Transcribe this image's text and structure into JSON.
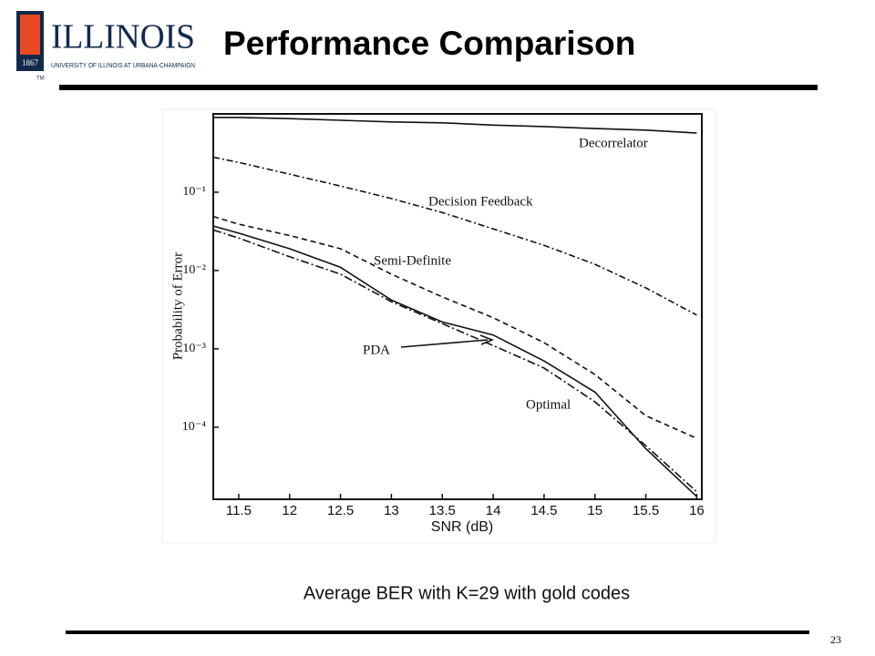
{
  "slide": {
    "title": "Performance Comparison",
    "caption": "Average BER with K=29 with gold codes",
    "page_number": "23",
    "logo": {
      "name": "ILLINOIS",
      "subtitle": "UNIVERSITY OF ILLINOIS AT URBANA-CHAMPAIGN",
      "year": "1867",
      "mark": "TM"
    }
  },
  "chart_data": {
    "type": "line",
    "x_label": "SNR (dB)",
    "y_label": "Probability of Error",
    "log_y": true,
    "x": [
      11.25,
      11.5,
      12,
      12.5,
      13,
      13.5,
      14,
      14.5,
      15,
      15.5,
      16
    ],
    "xlim": [
      11.25,
      16.05
    ],
    "xticks": [
      11.5,
      12,
      12.5,
      13,
      13.5,
      14,
      14.5,
      15,
      15.5,
      16
    ],
    "ylim": [
      1.2e-05,
      1
    ],
    "yticks": [
      {
        "value": 0.1,
        "label": "10⁻¹"
      },
      {
        "value": 0.01,
        "label": "10⁻²"
      },
      {
        "value": 0.001,
        "label": "10⁻³"
      },
      {
        "value": 0.0001,
        "label": "10⁻⁴"
      }
    ],
    "series": [
      {
        "name": "Decorrelator",
        "color": "#111",
        "dash": "none",
        "values": [
          0.9,
          0.9,
          0.87,
          0.83,
          0.79,
          0.77,
          0.72,
          0.69,
          0.65,
          0.62,
          0.57
        ]
      },
      {
        "name": "Decision Feedback",
        "color": "#111",
        "dash": "7,3,2,3",
        "values": [
          0.28,
          0.24,
          0.17,
          0.12,
          0.083,
          0.055,
          0.034,
          0.021,
          0.012,
          0.006,
          0.0027
        ]
      },
      {
        "name": "Semi-Definite",
        "color": "#111",
        "dash": "6,4",
        "values": [
          0.049,
          0.039,
          0.028,
          0.019,
          0.009,
          0.0046,
          0.0025,
          0.0012,
          0.00047,
          0.00014,
          7.2e-05
        ]
      },
      {
        "name": "PDA",
        "color": "#111",
        "dash": "none",
        "values": [
          0.037,
          0.03,
          0.019,
          0.011,
          0.0042,
          0.0022,
          0.0015,
          0.0007,
          0.00028,
          5.3e-05,
          1.3e-05
        ]
      },
      {
        "name": "Optimal",
        "color": "#111",
        "dash": "9,3,2,3",
        "values": [
          0.033,
          0.026,
          0.015,
          0.009,
          0.004,
          0.0021,
          0.0011,
          0.00057,
          0.00021,
          5.8e-05,
          1.5e-05
        ]
      }
    ]
  }
}
